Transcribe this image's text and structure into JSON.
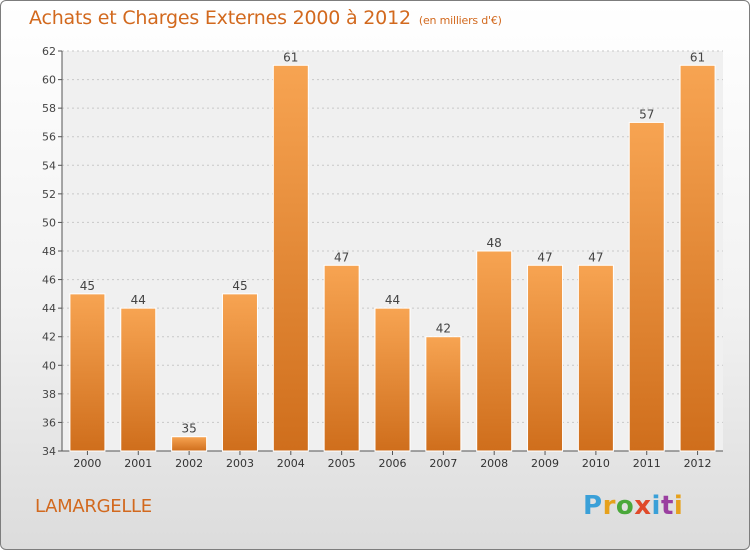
{
  "header": {
    "title": "Achats et Charges Externes 2000 à 2012",
    "subtitle": "(en milliers d'€)"
  },
  "footer": {
    "commune": "LAMARGELLE",
    "logo": [
      "P",
      "r",
      "o",
      "x",
      "i",
      "t",
      "i"
    ]
  },
  "colors": {
    "bar_top": "#f7a452",
    "bar_bottom": "#cf6e1c",
    "title": "#d2691e"
  },
  "chart_data": {
    "type": "bar",
    "categories": [
      "2000",
      "2001",
      "2002",
      "2003",
      "2004",
      "2005",
      "2006",
      "2007",
      "2008",
      "2009",
      "2010",
      "2011",
      "2012"
    ],
    "values": [
      45,
      44,
      35,
      45,
      61,
      47,
      44,
      42,
      48,
      47,
      47,
      57,
      61
    ],
    "ylim": [
      34,
      62
    ],
    "yticks": [
      34,
      36,
      38,
      40,
      42,
      44,
      46,
      48,
      50,
      52,
      54,
      56,
      58,
      60,
      62
    ],
    "grid": true,
    "title": "Achats et Charges Externes 2000 à 2012",
    "subtitle": "(en milliers d'€)"
  }
}
